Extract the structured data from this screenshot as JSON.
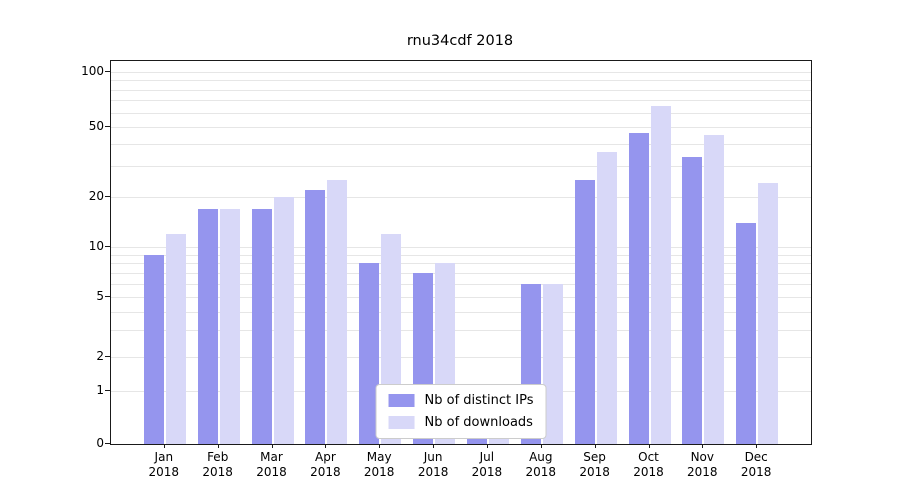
{
  "chart_data": {
    "type": "bar",
    "title": "rnu34cdf 2018",
    "categories": [
      "Jan",
      "Feb",
      "Mar",
      "Apr",
      "May",
      "Jun",
      "Jul",
      "Aug",
      "Sep",
      "Oct",
      "Nov",
      "Dec"
    ],
    "year": "2018",
    "series": [
      {
        "name": "Nb of distinct IPs",
        "color": "#9595ee",
        "values": [
          9,
          17,
          17,
          22,
          8,
          7,
          1,
          6,
          25,
          46,
          34,
          14
        ]
      },
      {
        "name": "Nb of downloads",
        "color": "#d8d8f8",
        "values": [
          12,
          17,
          20,
          25,
          12,
          8,
          1,
          6,
          36,
          65,
          45,
          24
        ]
      }
    ],
    "yscale": "log-with-zero-baseline",
    "yticks": [
      0,
      1,
      2,
      5,
      10,
      20,
      50,
      100
    ],
    "ylim": [
      0,
      100
    ],
    "grid": "horizontal log minor+major gridlines",
    "legend_position": "lower center",
    "colors": {
      "grid": "#e6e6e6",
      "spine": "#1a1a1a",
      "background": "#ffffff"
    }
  }
}
